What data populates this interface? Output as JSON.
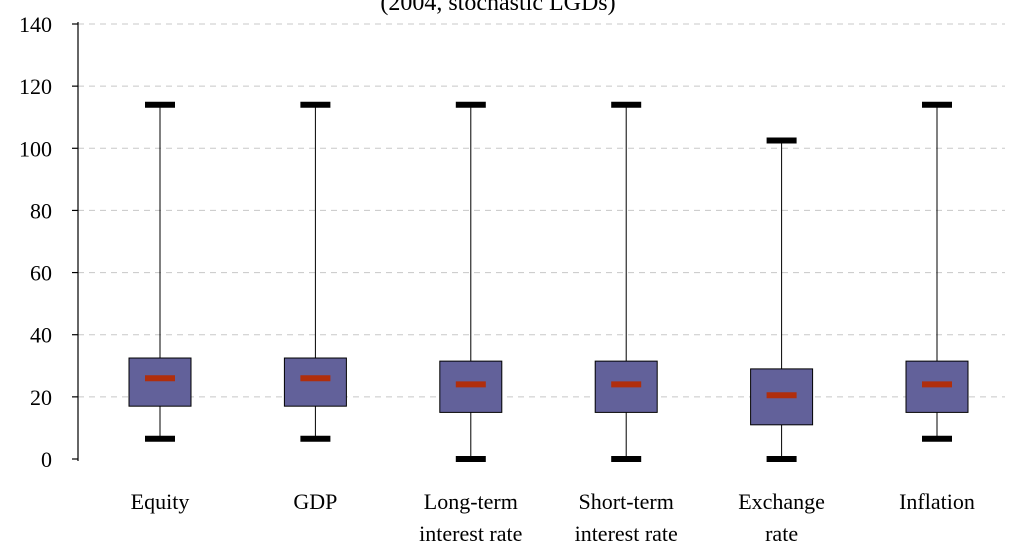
{
  "chart_data": {
    "type": "boxplot",
    "title": "(2004, stochastic LGDs)",
    "xlabel": "",
    "ylabel": "",
    "ylim": [
      0,
      140
    ],
    "yticks": [
      0,
      20,
      40,
      60,
      80,
      100,
      120,
      140
    ],
    "grid": true,
    "categories": [
      [
        "Equity"
      ],
      [
        "GDP"
      ],
      [
        "Long-term",
        "interest rate"
      ],
      [
        "Short-term",
        "interest rate"
      ],
      [
        "Exchange",
        "rate"
      ],
      [
        "Inflation"
      ]
    ],
    "boxes": [
      {
        "min": 6.5,
        "q1": 17,
        "median": 26,
        "q3": 32.5,
        "max": 114
      },
      {
        "min": 6.5,
        "q1": 17,
        "median": 26,
        "q3": 32.5,
        "max": 114
      },
      {
        "min": 0,
        "q1": 15,
        "median": 24,
        "q3": 31.5,
        "max": 114
      },
      {
        "min": 0,
        "q1": 15,
        "median": 24,
        "q3": 31.5,
        "max": 114
      },
      {
        "min": 0,
        "q1": 11,
        "median": 20.5,
        "q3": 29,
        "max": 102.5
      },
      {
        "min": 6.5,
        "q1": 15,
        "median": 24,
        "q3": 31.5,
        "max": 114
      }
    ],
    "colors": {
      "box_fill": "#62619a",
      "box_stroke": "#000000",
      "median": "#b02e0c",
      "whisker_cap": "#000000",
      "grid": "#c8c8c8"
    }
  }
}
